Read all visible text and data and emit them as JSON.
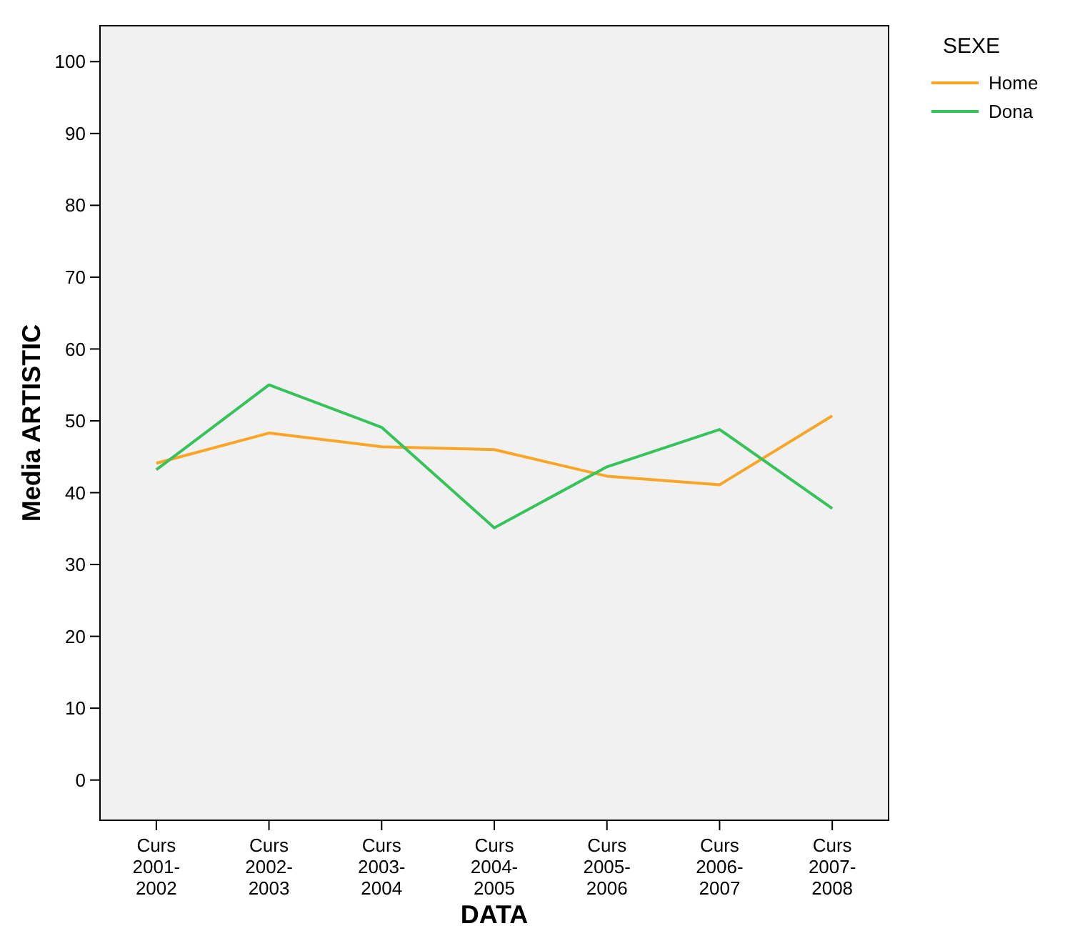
{
  "chart_data": {
    "type": "line",
    "xlabel": "DATA",
    "ylabel": "Media ARTISTIC",
    "legend_title": "SEXE",
    "legend": "top right",
    "categories": [
      "Curs\n2001-\n2002",
      "Curs\n2002-\n2003",
      "Curs\n2003-\n2004",
      "Curs\n2004-\n2005",
      "Curs\n2005-\n2006",
      "Curs\n2006-\n2007",
      "Curs\n2007-\n2008"
    ],
    "series": [
      {
        "name": "Home",
        "color": "#f9a526",
        "values": [
          44.1,
          48.3,
          46.4,
          46.0,
          42.3,
          41.1,
          50.7
        ]
      },
      {
        "name": "Dona",
        "color": "#35c35a",
        "values": [
          43.2,
          55.0,
          49.1,
          35.1,
          43.6,
          48.8,
          37.8
        ]
      }
    ],
    "ylim": [
      -5.6,
      105
    ],
    "yticks": [
      0,
      10,
      20,
      30,
      40,
      50,
      60,
      70,
      80,
      90,
      100
    ],
    "grid": false,
    "marker": "none",
    "line_style": "solid"
  }
}
